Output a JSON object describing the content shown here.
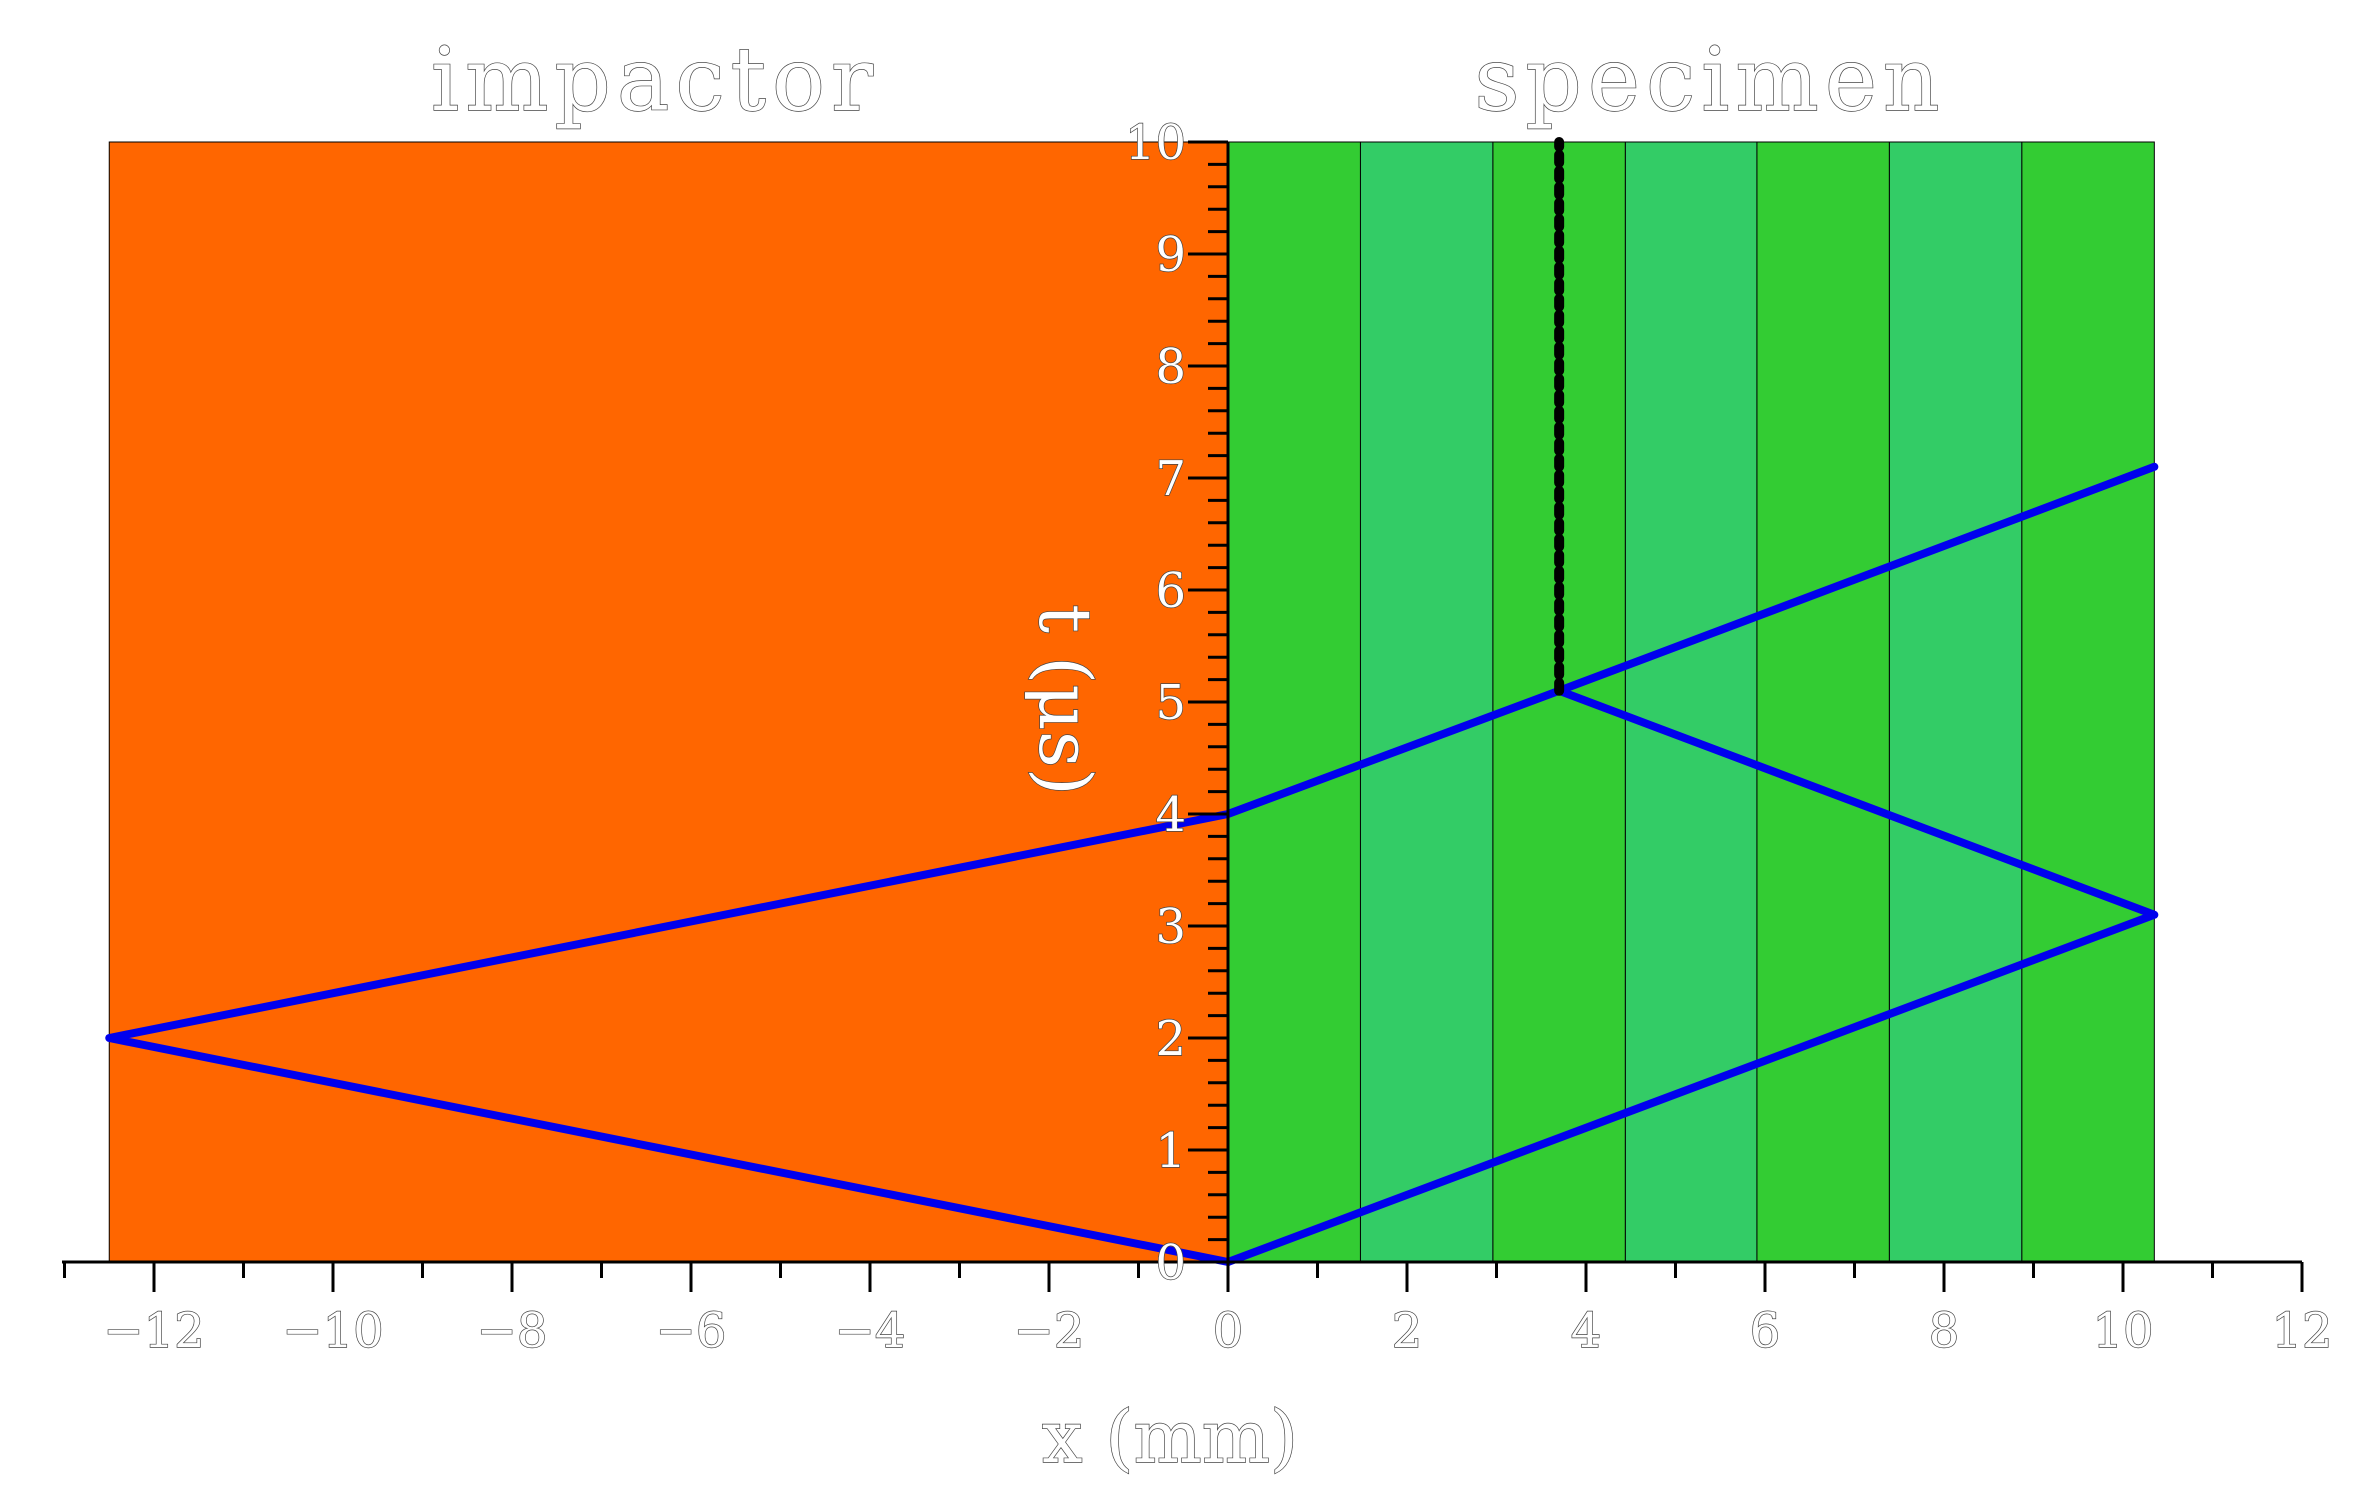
{
  "chart_data": {
    "type": "line",
    "titles": {
      "left": "impactor",
      "right": "specimen"
    },
    "xlabel": "x  (mm)",
    "ylabel": "t  (μs)",
    "xlim": [
      -13,
      12
    ],
    "ylim": [
      0,
      10
    ],
    "xticks": [
      -12,
      -10,
      -8,
      -6,
      -4,
      -2,
      0,
      2,
      4,
      6,
      8,
      10,
      12
    ],
    "yticks": [
      0,
      1,
      2,
      3,
      4,
      5,
      6,
      7,
      8,
      9,
      10
    ],
    "regions": [
      {
        "name": "impactor",
        "x0": -12.5,
        "x1": 0,
        "color": "#ff6600"
      },
      {
        "name": "specimen-layer-1",
        "x0": 0,
        "x1": 1.48,
        "color": "#33cc33"
      },
      {
        "name": "specimen-layer-2",
        "x0": 1.48,
        "x1": 2.96,
        "color": "#33cc66"
      },
      {
        "name": "specimen-layer-3",
        "x0": 2.96,
        "x1": 4.44,
        "color": "#33cc33"
      },
      {
        "name": "specimen-layer-4",
        "x0": 4.44,
        "x1": 5.91,
        "color": "#33cc66"
      },
      {
        "name": "specimen-layer-5",
        "x0": 5.91,
        "x1": 7.39,
        "color": "#33cc33"
      },
      {
        "name": "specimen-layer-6",
        "x0": 7.39,
        "x1": 8.87,
        "color": "#33cc66"
      },
      {
        "name": "specimen-layer-7",
        "x0": 8.87,
        "x1": 10.35,
        "color": "#33cc33"
      }
    ],
    "series": [
      {
        "color": "#0000ee",
        "style": "solid",
        "x": [
          0,
          -12.5,
          0,
          3.7,
          10.35
        ],
        "y": [
          0,
          2,
          4,
          5.1,
          7.1
        ]
      },
      {
        "color": "#0000ee",
        "style": "solid",
        "x": [
          0,
          10.35,
          3.7
        ],
        "y": [
          0,
          3.1,
          5.1
        ]
      },
      {
        "color": "#000000",
        "style": "dashed",
        "x": [
          3.7,
          3.7
        ],
        "y": [
          5.1,
          10
        ]
      }
    ]
  }
}
